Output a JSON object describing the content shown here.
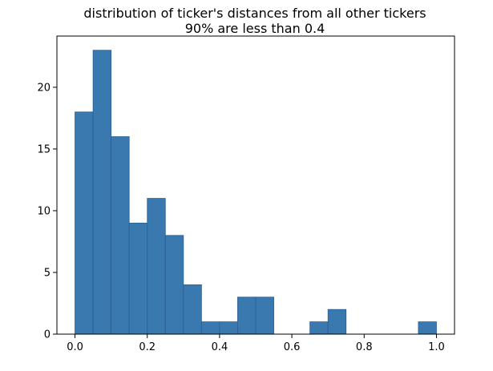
{
  "chart_data": {
    "type": "bar",
    "title": "distribution of ticker's distances from all other tickers",
    "subtitle": "90% are less than 0.4",
    "xlabel": "",
    "ylabel": "",
    "bin_width": 0.05,
    "bin_starts": [
      0.0,
      0.05,
      0.1,
      0.15,
      0.2,
      0.25,
      0.3,
      0.35,
      0.4,
      0.45,
      0.5,
      0.55,
      0.6,
      0.65,
      0.7,
      0.75,
      0.8,
      0.85,
      0.9,
      0.95
    ],
    "values": [
      18,
      23,
      16,
      9,
      11,
      8,
      4,
      1,
      1,
      3,
      3,
      0,
      0,
      1,
      2,
      0,
      0,
      0,
      0,
      1
    ],
    "xlim": [
      -0.05,
      1.05
    ],
    "ylim": [
      0,
      24.15
    ],
    "x_ticks": [
      0.0,
      0.2,
      0.4,
      0.6,
      0.8,
      1.0
    ],
    "x_tick_labels": [
      "0.0",
      "0.2",
      "0.4",
      "0.6",
      "0.8",
      "1.0"
    ],
    "y_ticks": [
      0,
      5,
      10,
      15,
      20
    ],
    "y_tick_labels": [
      "0",
      "5",
      "10",
      "15",
      "20"
    ],
    "grid": false,
    "legend": "none",
    "colors": {
      "bar_fill": "#3a78b0",
      "bar_edge": "#2b5f91",
      "axis": "#000000"
    }
  }
}
